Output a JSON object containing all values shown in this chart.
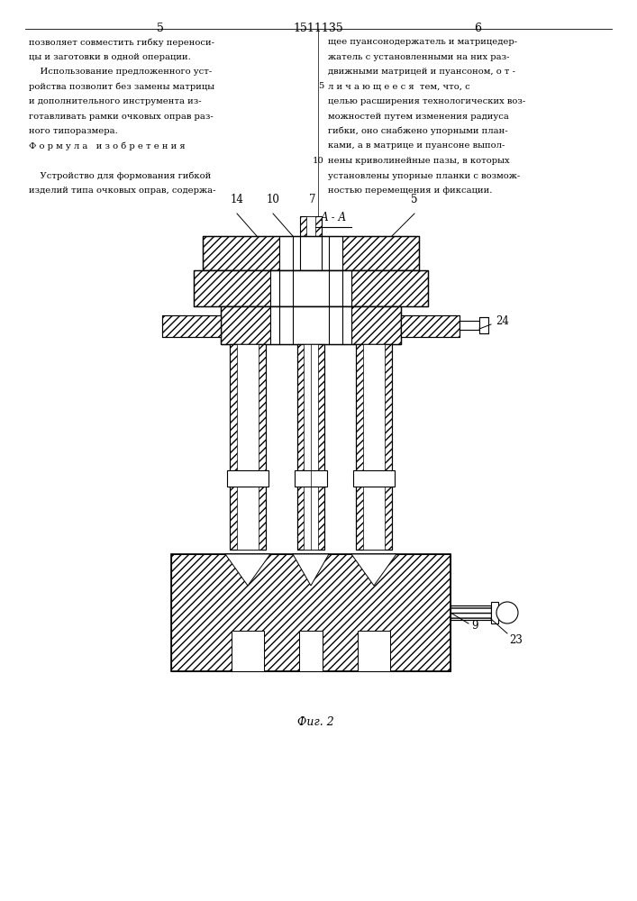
{
  "page_title": "1511135",
  "page_num_left": "5",
  "page_num_right": "6",
  "text_left": [
    "позволяет совместить гибку переноси-",
    "цы и заготовки в одной операции.",
    "    Использование предложенного уст-",
    "ройства позволит без замены матрицы",
    "и дополнительного инструмента из-",
    "готавливать рамки очковых оправ раз-",
    "ного типоразмера.",
    "Ф о р м у л а   и з о б р е т е н и я",
    "",
    "    Устройство для формования гибкой",
    "изделий типа очковых оправ, содержа-"
  ],
  "text_right": [
    "щее пуансонодержатель и матрицедер-",
    "жатель с установленными на них раз-",
    "движными матрицей и пуансоном, о т -",
    "л и ч а ю щ е е с я  тем, что, с",
    "целью расширения технологических воз-",
    "можностей путем изменения радиуса",
    "гибки, оно снабжено упорными план-",
    "ками, а в матрице и пуансоне выпол-",
    "нены криволинейные пазы, в которых",
    "установлены упорные планки с возмож-",
    "ностью перемещения и фиксации."
  ],
  "section_label": "А - А",
  "fig_label": "Фиг. 2",
  "bg_color": "#ffffff",
  "line_color": "#000000"
}
